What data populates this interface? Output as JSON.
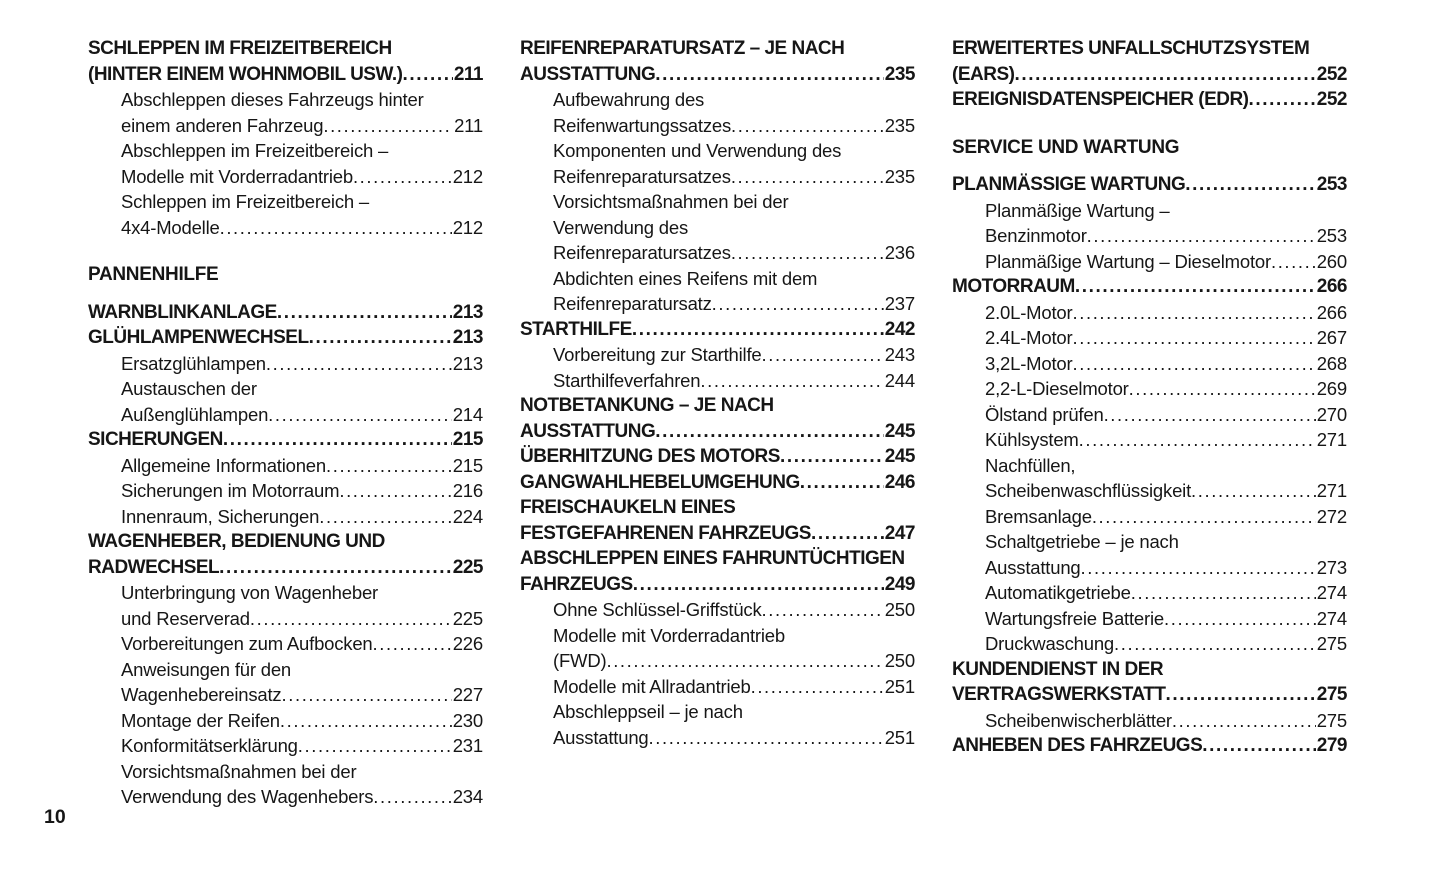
{
  "page": {
    "number": "10"
  },
  "colors": {
    "text": "#161616",
    "background": "#ffffff"
  },
  "columns": [
    {
      "blocks": [
        {
          "type": "chapter",
          "lines": [
            "SCHLEPPEN IM FREIZEITBEREICH",
            "(HINTER EINEM WOHNMOBIL USW.)"
          ],
          "page": "211"
        },
        {
          "type": "sub",
          "lines": [
            "Abschleppen dieses Fahrzeugs hinter",
            "einem anderen Fahrzeug"
          ],
          "page": "211"
        },
        {
          "type": "sub",
          "lines": [
            "Abschleppen im Freizeitbereich –",
            "Modelle mit Vorderradantrieb"
          ],
          "page": "212"
        },
        {
          "type": "sub",
          "lines": [
            "Schleppen im Freizeitbereich –",
            "4x4-Modelle"
          ],
          "page": "212"
        },
        {
          "type": "section",
          "lines": [
            "PANNENHILFE"
          ]
        },
        {
          "type": "chapter",
          "lines": [
            "WARNBLINKANLAGE"
          ],
          "page": "213"
        },
        {
          "type": "chapter",
          "lines": [
            "GLÜHLAMPENWECHSEL"
          ],
          "page": "213"
        },
        {
          "type": "sub",
          "lines": [
            "Ersatzglühlampen"
          ],
          "page": "213"
        },
        {
          "type": "sub",
          "lines": [
            "Austauschen der",
            "Außenglühlampen"
          ],
          "page": "214"
        },
        {
          "type": "chapter",
          "lines": [
            "SICHERUNGEN"
          ],
          "page": "215"
        },
        {
          "type": "sub",
          "lines": [
            "Allgemeine Informationen"
          ],
          "page": "215"
        },
        {
          "type": "sub",
          "lines": [
            "Sicherungen im Motorraum"
          ],
          "page": "216"
        },
        {
          "type": "sub",
          "lines": [
            "Innenraum, Sicherungen"
          ],
          "page": "224"
        },
        {
          "type": "chapter",
          "lines": [
            "WAGENHEBER, BEDIENUNG UND",
            "RADWECHSEL"
          ],
          "page": "225"
        },
        {
          "type": "sub",
          "lines": [
            "Unterbringung von Wagenheber",
            "und Reserverad"
          ],
          "page": "225"
        },
        {
          "type": "sub",
          "lines": [
            "Vorbereitungen zum Aufbocken"
          ],
          "page": "226"
        },
        {
          "type": "sub",
          "lines": [
            "Anweisungen für den",
            "Wagenhebereinsatz"
          ],
          "page": "227"
        },
        {
          "type": "sub",
          "lines": [
            "Montage der Reifen"
          ],
          "page": "230"
        },
        {
          "type": "sub",
          "lines": [
            "Konformitätserklärung"
          ],
          "page": "231"
        },
        {
          "type": "sub",
          "lines": [
            "Vorsichtsmaßnahmen bei der",
            "Verwendung des Wagenhebers"
          ],
          "page": "234"
        }
      ]
    },
    {
      "blocks": [
        {
          "type": "chapter",
          "lines": [
            "REIFENREPARATURSATZ – JE NACH",
            "AUSSTATTUNG"
          ],
          "page": "235"
        },
        {
          "type": "sub",
          "lines": [
            "Aufbewahrung des",
            "Reifenwartungssatzes"
          ],
          "page": "235"
        },
        {
          "type": "sub",
          "lines": [
            "Komponenten und Verwendung des",
            "Reifenreparatursatzes"
          ],
          "page": "235"
        },
        {
          "type": "sub",
          "lines": [
            "Vorsichtsmaßnahmen bei der",
            "Verwendung des",
            "Reifenreparatursatzes"
          ],
          "page": "236"
        },
        {
          "type": "sub",
          "lines": [
            "Abdichten eines Reifens mit dem",
            "Reifenreparatursatz"
          ],
          "page": "237"
        },
        {
          "type": "chapter",
          "lines": [
            "STARTHILFE"
          ],
          "page": "242"
        },
        {
          "type": "sub",
          "lines": [
            "Vorbereitung zur Starthilfe"
          ],
          "page": "243"
        },
        {
          "type": "sub",
          "lines": [
            "Starthilfeverfahren"
          ],
          "page": "244"
        },
        {
          "type": "chapter",
          "lines": [
            "NOTBETANKUNG – JE NACH",
            "AUSSTATTUNG"
          ],
          "page": "245"
        },
        {
          "type": "chapter",
          "lines": [
            "ÜBERHITZUNG DES MOTORS"
          ],
          "page": "245"
        },
        {
          "type": "chapter",
          "lines": [
            "GANGWAHLHEBELUMGEHUNG"
          ],
          "page": "246"
        },
        {
          "type": "chapter",
          "lines": [
            "FREISCHAUKELN EINES",
            "FESTGEFAHRENEN FAHRZEUGS"
          ],
          "page": "247"
        },
        {
          "type": "chapter",
          "lines": [
            "ABSCHLEPPEN EINES FAHRUNTÜCHTIGEN",
            "FAHRZEUGS"
          ],
          "page": "249"
        },
        {
          "type": "sub",
          "lines": [
            "Ohne Schlüssel-Griffstück"
          ],
          "page": "250"
        },
        {
          "type": "sub",
          "lines": [
            "Modelle mit Vorderradantrieb",
            "(FWD)"
          ],
          "page": "250"
        },
        {
          "type": "sub",
          "lines": [
            "Modelle mit Allradantrieb"
          ],
          "page": "251"
        },
        {
          "type": "sub",
          "lines": [
            "Abschleppseil – je nach",
            "Ausstattung"
          ],
          "page": "251"
        }
      ]
    },
    {
      "blocks": [
        {
          "type": "chapter",
          "lines": [
            "ERWEITERTES UNFALLSCHUTZSYSTEM",
            "(EARS)"
          ],
          "page": "252"
        },
        {
          "type": "chapter",
          "lines": [
            "EREIGNISDATENSPEICHER (EDR)"
          ],
          "page": "252"
        },
        {
          "type": "section",
          "lines": [
            "SERVICE UND WARTUNG"
          ]
        },
        {
          "type": "chapter",
          "lines": [
            "PLANMÄSSIGE WARTUNG"
          ],
          "page": "253"
        },
        {
          "type": "sub",
          "lines": [
            "Planmäßige Wartung –",
            "Benzinmotor"
          ],
          "page": "253"
        },
        {
          "type": "sub",
          "lines": [
            "Planmäßige Wartung – Dieselmotor"
          ],
          "page": "260"
        },
        {
          "type": "chapter",
          "lines": [
            "MOTORRAUM"
          ],
          "page": "266"
        },
        {
          "type": "sub",
          "lines": [
            "2.0L-Motor"
          ],
          "page": "266"
        },
        {
          "type": "sub",
          "lines": [
            "2.4L-Motor"
          ],
          "page": "267"
        },
        {
          "type": "sub",
          "lines": [
            "3,2L-Motor"
          ],
          "page": "268"
        },
        {
          "type": "sub",
          "lines": [
            "2,2-L-Dieselmotor"
          ],
          "page": "269"
        },
        {
          "type": "sub",
          "lines": [
            "Ölstand prüfen"
          ],
          "page": "270"
        },
        {
          "type": "sub",
          "lines": [
            "Kühlsystem"
          ],
          "page": "271"
        },
        {
          "type": "sub",
          "lines": [
            "Nachfüllen,",
            "Scheibenwaschflüssigkeit"
          ],
          "page": "271"
        },
        {
          "type": "sub",
          "lines": [
            "Bremsanlage"
          ],
          "page": "272"
        },
        {
          "type": "sub",
          "lines": [
            "Schaltgetriebe – je nach",
            "Ausstattung"
          ],
          "page": "273"
        },
        {
          "type": "sub",
          "lines": [
            "Automatikgetriebe"
          ],
          "page": "274"
        },
        {
          "type": "sub",
          "lines": [
            "Wartungsfreie Batterie"
          ],
          "page": "274"
        },
        {
          "type": "sub",
          "lines": [
            "Druckwaschung"
          ],
          "page": "275"
        },
        {
          "type": "chapter",
          "lines": [
            "KUNDENDIENST IN DER",
            "VERTRAGSWERKSTATT"
          ],
          "page": "275"
        },
        {
          "type": "sub",
          "lines": [
            "Scheibenwischerblätter"
          ],
          "page": "275"
        },
        {
          "type": "chapter",
          "lines": [
            "ANHEBEN DES FAHRZEUGS"
          ],
          "page": "279"
        }
      ]
    }
  ]
}
